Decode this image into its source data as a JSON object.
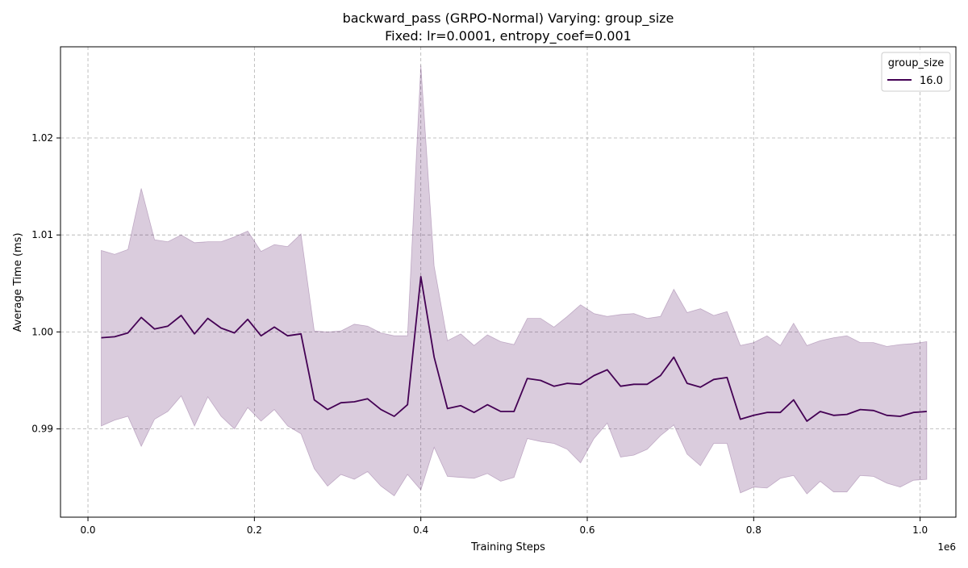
{
  "chart_data": {
    "type": "line",
    "title": "backward_pass (GRPO-Normal) Varying: group_size",
    "subtitle": "Fixed: lr=0.0001, entropy_coef=0.001",
    "xlabel": "Training Steps",
    "ylabel": "Average Time (ms)",
    "x_offset_label": "1e6",
    "xlim": [
      -0.033,
      1.043
    ],
    "ylim": [
      0.9809,
      1.0294
    ],
    "x_ticks": [
      0.0,
      0.2,
      0.4,
      0.6,
      0.8,
      1.0
    ],
    "x_tick_labels": [
      "0.0",
      "0.2",
      "0.4",
      "0.6",
      "0.8",
      "1.0"
    ],
    "y_ticks": [
      0.99,
      1.0,
      1.01,
      1.02
    ],
    "y_tick_labels": [
      "0.99",
      "1.00",
      "1.01",
      "1.02"
    ],
    "grid": true,
    "legend": {
      "title": "group_size",
      "placement": "top-right"
    },
    "colors": {
      "line": "#440154",
      "band": "#440154"
    },
    "series": [
      {
        "name": "16.0",
        "x": [
          0.016,
          0.032,
          0.048,
          0.064,
          0.08,
          0.096,
          0.112,
          0.128,
          0.144,
          0.16,
          0.176,
          0.192,
          0.208,
          0.224,
          0.24,
          0.256,
          0.272,
          0.288,
          0.304,
          0.32,
          0.336,
          0.352,
          0.368,
          0.384,
          0.4,
          0.416,
          0.432,
          0.448,
          0.464,
          0.48,
          0.496,
          0.512,
          0.528,
          0.544,
          0.56,
          0.576,
          0.592,
          0.608,
          0.624,
          0.64,
          0.656,
          0.672,
          0.688,
          0.704,
          0.72,
          0.736,
          0.752,
          0.768,
          0.784,
          0.8,
          0.816,
          0.832,
          0.848,
          0.864,
          0.88,
          0.896,
          0.912,
          0.928,
          0.944,
          0.96,
          0.976,
          0.992,
          1.008
        ],
        "y": [
          0.9994,
          0.9995,
          0.9999,
          1.0015,
          1.0003,
          1.0006,
          1.0017,
          0.9998,
          1.0014,
          1.0004,
          0.9999,
          1.0013,
          0.9996,
          1.0005,
          0.9996,
          0.9998,
          0.993,
          0.992,
          0.9927,
          0.9928,
          0.9931,
          0.992,
          0.9913,
          0.9925,
          1.0057,
          0.9974,
          0.9921,
          0.9924,
          0.9917,
          0.9925,
          0.9918,
          0.9918,
          0.9952,
          0.995,
          0.9944,
          0.9947,
          0.9946,
          0.9955,
          0.9961,
          0.9944,
          0.9946,
          0.9946,
          0.9955,
          0.9974,
          0.9947,
          0.9943,
          0.9951,
          0.9953,
          0.991,
          0.9914,
          0.9917,
          0.9917,
          0.993,
          0.9908,
          0.9918,
          0.9914,
          0.9915,
          0.992,
          0.9919,
          0.9914,
          0.9913,
          0.9917,
          0.9918
        ],
        "lower": [
          0.9903,
          0.9909,
          0.9913,
          0.9882,
          0.991,
          0.9918,
          0.9934,
          0.9903,
          0.9933,
          0.9913,
          0.99,
          0.9922,
          0.9908,
          0.992,
          0.9903,
          0.9895,
          0.9859,
          0.9841,
          0.9853,
          0.9848,
          0.9856,
          0.9841,
          0.9831,
          0.9853,
          0.9837,
          0.9881,
          0.9851,
          0.985,
          0.9849,
          0.9854,
          0.9846,
          0.985,
          0.989,
          0.9887,
          0.9885,
          0.9879,
          0.9865,
          0.989,
          0.9906,
          0.9871,
          0.9873,
          0.9879,
          0.9893,
          0.9904,
          0.9874,
          0.9862,
          0.9885,
          0.9885,
          0.9834,
          0.984,
          0.9839,
          0.9849,
          0.9852,
          0.9833,
          0.9846,
          0.9835,
          0.9835,
          0.9852,
          0.9851,
          0.9844,
          0.984,
          0.9847,
          0.9848
        ],
        "upper": [
          1.0084,
          1.008,
          1.0085,
          1.0148,
          1.0095,
          1.0093,
          1.01,
          1.0092,
          1.0093,
          1.0093,
          1.0098,
          1.0104,
          1.0083,
          1.009,
          1.0088,
          1.0101,
          1.0001,
          1.0,
          1.0001,
          1.0008,
          1.0006,
          0.9999,
          0.9996,
          0.9996,
          1.0275,
          1.0068,
          0.9991,
          0.9998,
          0.9986,
          0.9997,
          0.999,
          0.9987,
          1.0014,
          1.0014,
          1.0005,
          1.0016,
          1.0028,
          1.0019,
          1.0016,
          1.0018,
          1.0019,
          1.0014,
          1.0016,
          1.0044,
          1.002,
          1.0024,
          1.0017,
          1.0021,
          0.9986,
          0.9989,
          0.9996,
          0.9986,
          1.0009,
          0.9986,
          0.9991,
          0.9994,
          0.9996,
          0.9989,
          0.9989,
          0.9985,
          0.9987,
          0.9988,
          0.999
        ]
      }
    ]
  }
}
